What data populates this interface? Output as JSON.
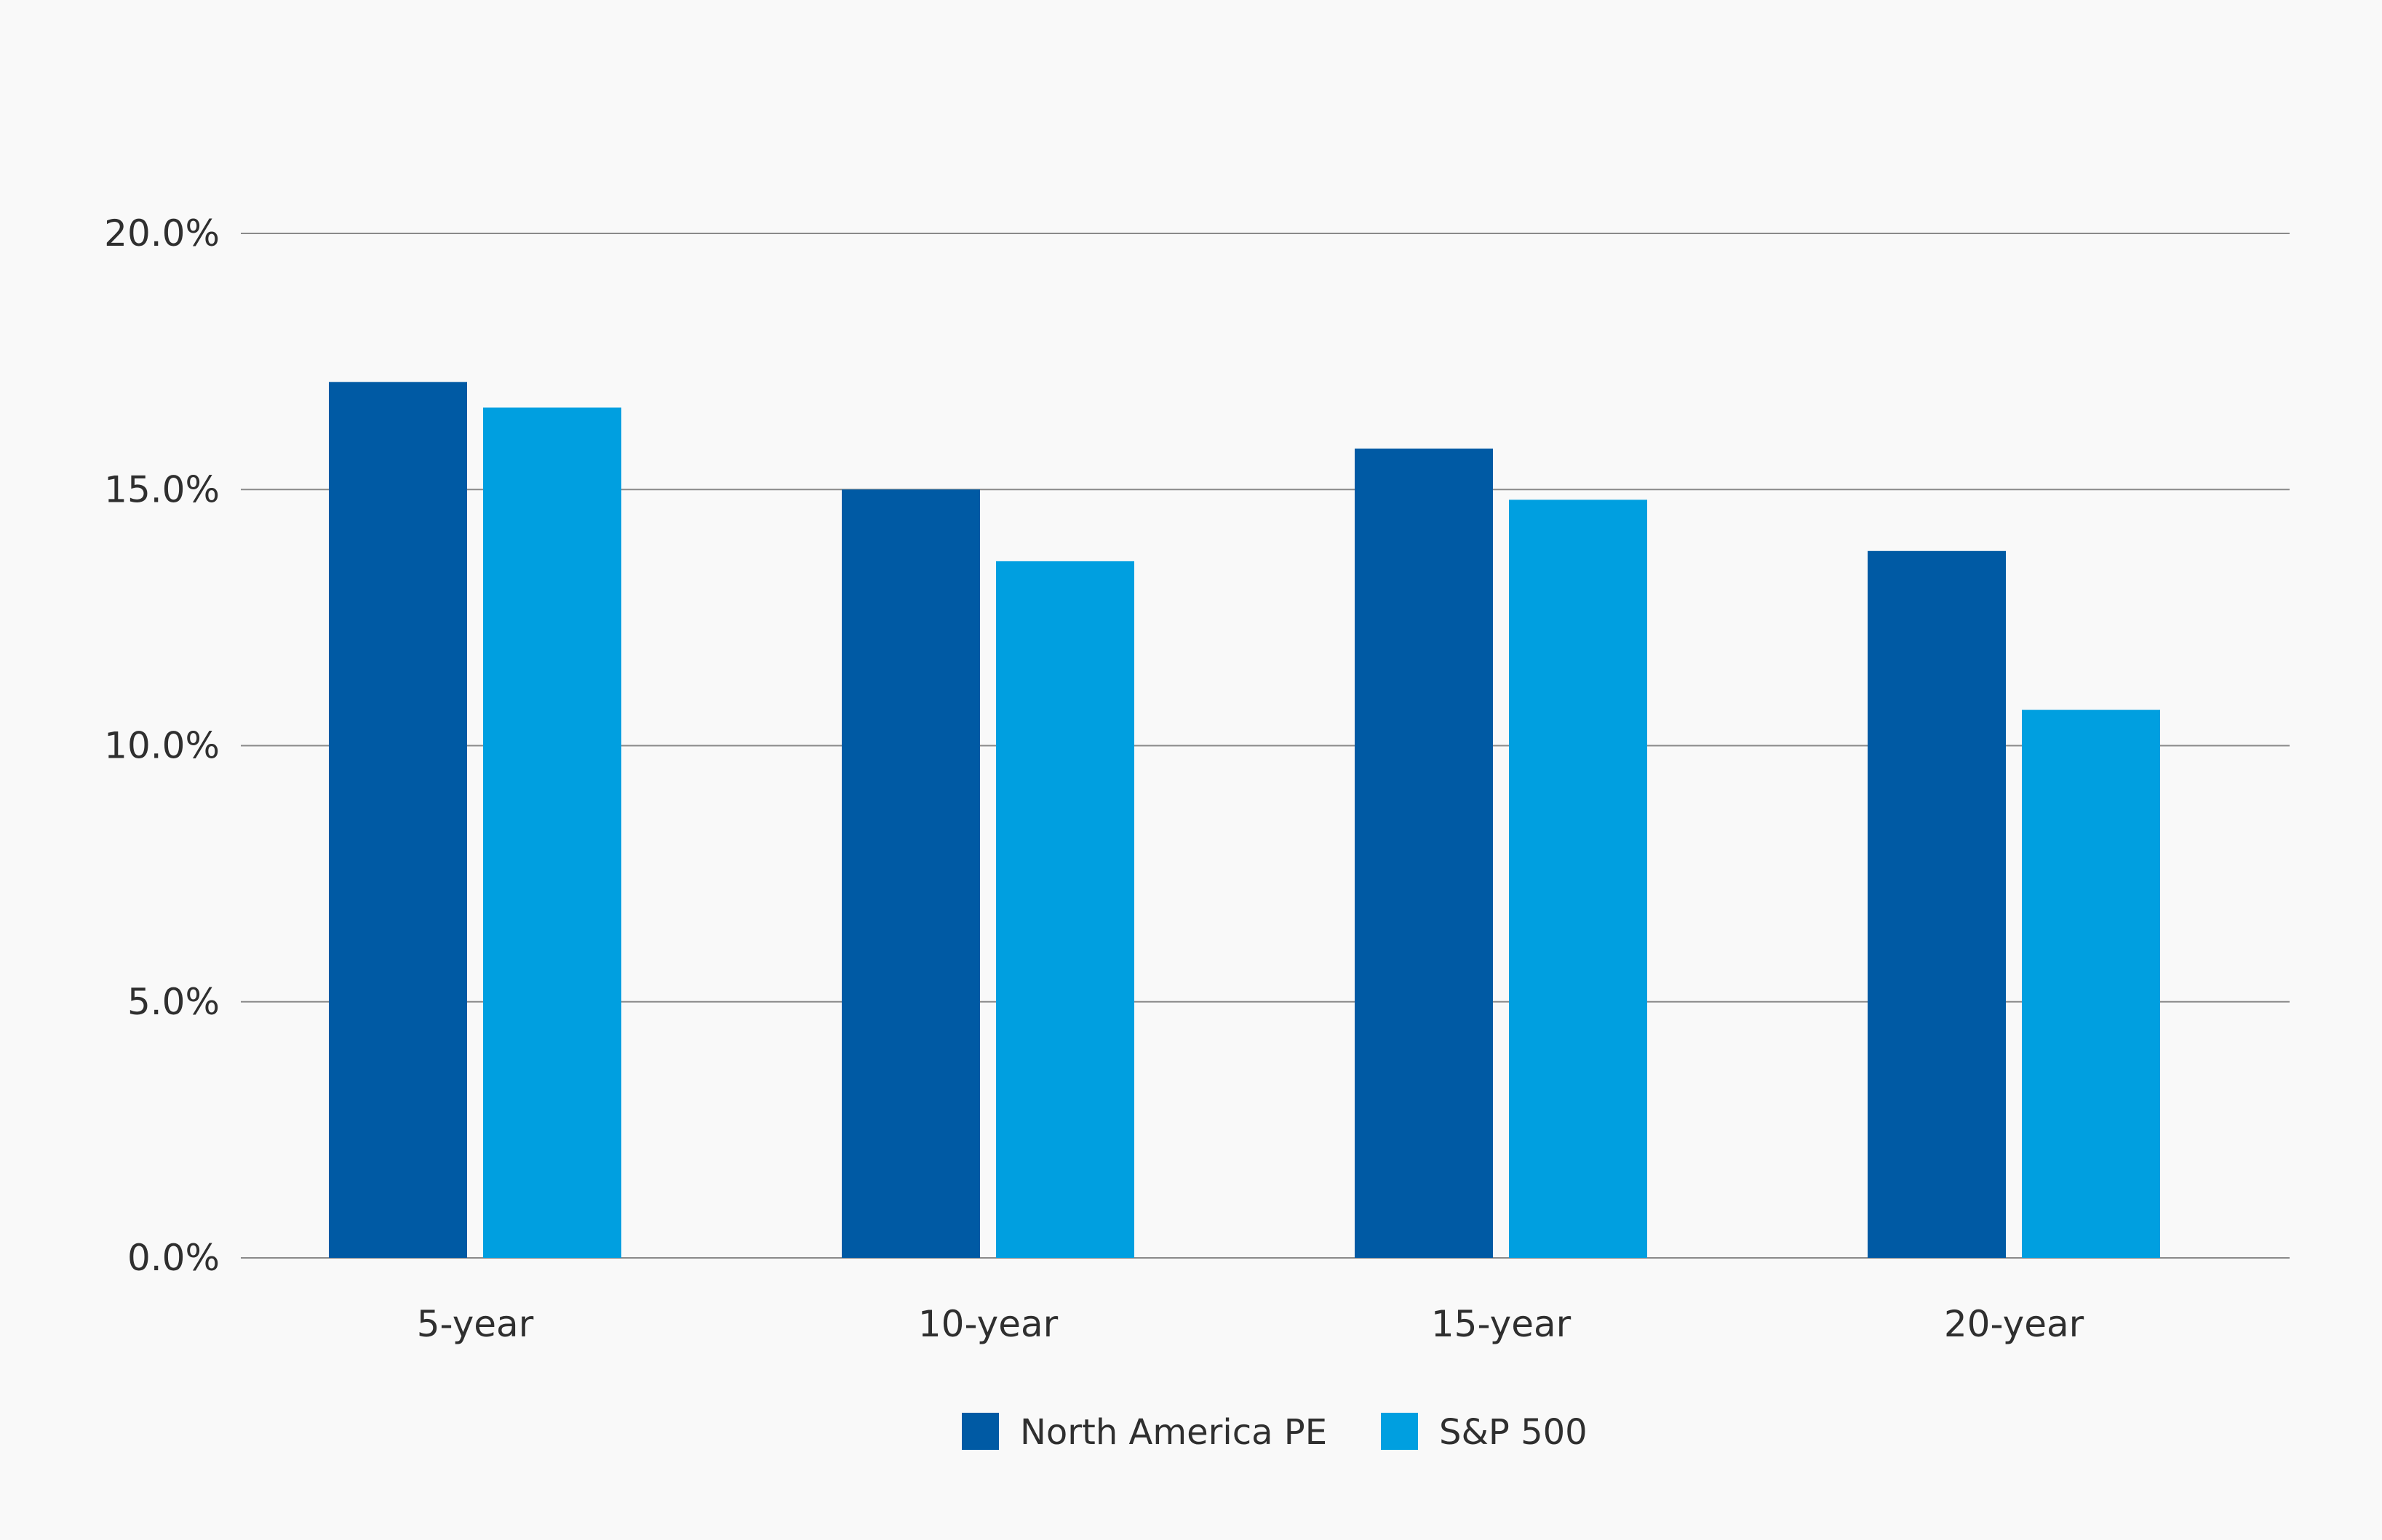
{
  "chart_data": {
    "type": "bar",
    "title": "",
    "xlabel": "",
    "ylabel": "",
    "categories": [
      "5-year",
      "10-year",
      "15-year",
      "20-year"
    ],
    "series": [
      {
        "name": "North America PE",
        "values": [
          17.1,
          15.0,
          15.8,
          13.8
        ],
        "color": "#005aa4"
      },
      {
        "name": "S&P 500",
        "values": [
          16.6,
          13.6,
          14.8,
          10.7
        ],
        "color": "#009fe0"
      }
    ],
    "ylim": [
      0,
      20
    ],
    "yticks": [
      0,
      5,
      10,
      15,
      20
    ],
    "ytick_labels": [
      "0.0%",
      "5.0%",
      "10.0%",
      "15.0%",
      "20.0%"
    ],
    "grid": true,
    "legend_position": "bottom-center"
  }
}
